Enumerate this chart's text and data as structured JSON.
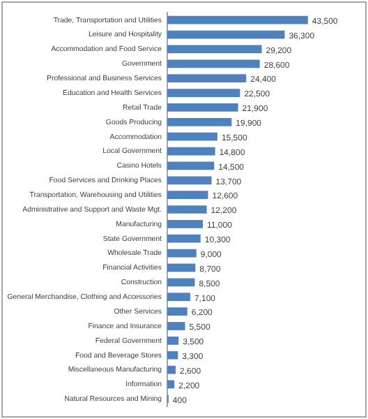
{
  "chart_data": {
    "type": "bar",
    "orientation": "horizontal",
    "categories": [
      "Trade, Transportation and Utilities",
      "Leisure and Hospitality",
      "Accommodation and Food Service",
      "Government",
      "Professional and Business Services",
      "Education and Health Services",
      "Retail Trade",
      "Goods Producing",
      "Accommodation",
      "Local Government",
      "Casino Hotels",
      "Food Services and Drinking Places",
      "Transportation, Warehousing and Utilities",
      "Administrative and Support and Waste Mgt.",
      "Manufacturing",
      "State Government",
      "Wholesale Trade",
      "Financial Activities",
      "Construction",
      "General Merchandise, Clothing and Accessories",
      "Other Services",
      "Finance and Insurance",
      "Federal Government",
      "Food and Beverage Stores",
      "Miscellaneous Manufacturing",
      "Information",
      "Natural Resources and Mining"
    ],
    "values": [
      43500,
      36300,
      29200,
      28600,
      24400,
      22500,
      21900,
      19900,
      15500,
      14800,
      14500,
      13700,
      12600,
      12200,
      11000,
      10300,
      9000,
      8700,
      8500,
      7100,
      6200,
      5500,
      3500,
      3300,
      2600,
      2200,
      400
    ],
    "value_labels": [
      "43,500",
      "36,300",
      "29,200",
      "28,600",
      "24,400",
      "22,500",
      "21,900",
      "19,900",
      "15,500",
      "14,800",
      "14,500",
      "13,700",
      "12,600",
      "12,200",
      "11,000",
      "10,300",
      "9,000",
      "8,700",
      "8,500",
      "7,100",
      "6,200",
      "5,500",
      "3,500",
      "3,300",
      "2,600",
      "2,200",
      "400"
    ],
    "color": "#4f81bd",
    "tick_labels": "y",
    "grid": false,
    "legend": false
  }
}
